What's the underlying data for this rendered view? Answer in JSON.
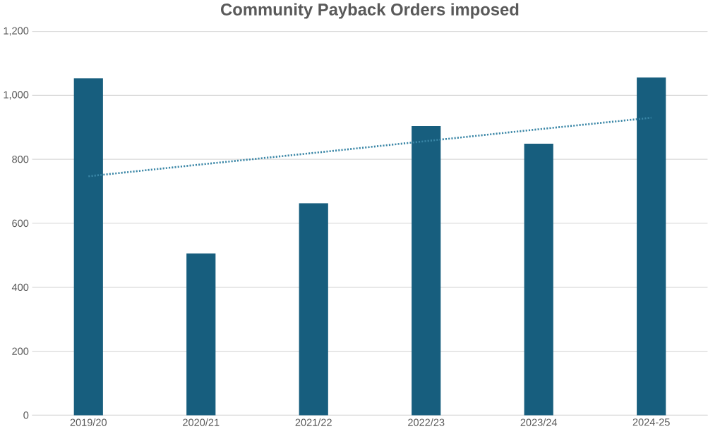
{
  "chart_data": {
    "type": "bar",
    "title": "Community Payback Orders imposed",
    "categories": [
      "2019/20",
      "2020/21",
      "2021/22",
      "2022/23",
      "2023/24",
      "2024-25"
    ],
    "series": [
      {
        "color": "#175e7e",
        "values": [
          1053,
          506,
          663,
          904,
          849,
          1056
        ]
      },
      {
        "type": "line",
        "color": "#3a86a6",
        "line_style": "dotted",
        "values": [
          747,
          784,
          820,
          857,
          894,
          930
        ]
      }
    ],
    "ylim": [
      0,
      1200
    ],
    "yticks": [
      0,
      200,
      400,
      600,
      800,
      {
        "value": 1000,
        "label": "1,000"
      },
      {
        "value": 1200,
        "label": "1,200"
      }
    ],
    "grid": "y"
  }
}
